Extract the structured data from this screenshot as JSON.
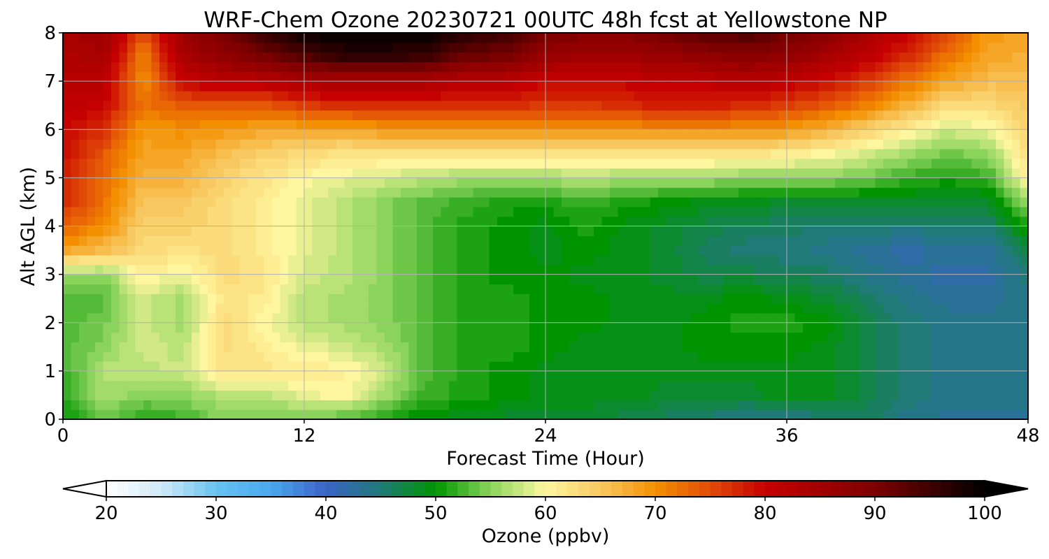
{
  "chart_data": {
    "type": "heatmap",
    "title": "WRF-Chem Ozone  20230721 00UTC 48h fcst at Yellowstone NP",
    "xlabel": "Forecast Time (Hour)",
    "ylabel": "Alt AGL (km)",
    "xlim": [
      0,
      48
    ],
    "ylim": [
      0,
      8
    ],
    "xticks": [
      "0",
      "12",
      "24",
      "36",
      "48"
    ],
    "yticks": [
      "0",
      "1",
      "2",
      "3",
      "4",
      "5",
      "6",
      "7",
      "8"
    ],
    "grid": true,
    "x_hours": [
      0,
      2,
      4,
      6,
      8,
      10,
      12,
      14,
      16,
      18,
      20,
      22,
      24,
      26,
      28,
      30,
      32,
      34,
      36,
      38,
      40,
      42,
      44,
      46,
      48
    ],
    "y_km": [
      0,
      0.5,
      1,
      1.5,
      2,
      2.5,
      3,
      3.5,
      4,
      4.5,
      5,
      5.5,
      6,
      6.5,
      7,
      7.5,
      8
    ],
    "ozone_ppbv": [
      [
        50,
        54,
        51,
        52,
        55,
        54,
        54,
        53,
        51,
        49,
        49,
        48,
        48,
        48,
        47,
        46,
        45,
        44,
        44,
        45,
        46,
        44,
        43,
        43,
        43
      ],
      [
        51,
        56,
        55,
        55,
        57,
        57,
        59,
        60,
        56,
        52,
        51,
        50,
        49,
        49,
        49,
        48,
        48,
        48,
        49,
        49,
        47,
        45,
        44,
        44,
        44
      ],
      [
        52,
        57,
        57,
        58,
        62,
        62,
        61,
        61,
        58,
        53,
        51,
        50,
        49,
        49,
        49,
        49,
        49,
        49,
        49,
        49,
        47,
        45,
        44,
        44,
        44
      ],
      [
        53,
        55,
        58,
        57,
        63,
        61,
        59,
        58,
        56,
        53,
        51,
        51,
        50,
        49,
        49,
        49,
        50,
        50,
        50,
        49,
        47,
        45,
        44,
        44,
        44
      ],
      [
        53,
        54,
        58,
        56,
        63,
        60,
        57,
        56,
        55,
        53,
        51,
        51,
        50,
        50,
        49,
        49,
        50,
        51,
        51,
        50,
        47,
        45,
        44,
        44,
        44
      ],
      [
        53,
        53,
        58,
        56,
        62,
        61,
        57,
        56,
        55,
        53,
        51,
        51,
        50,
        50,
        49,
        49,
        49,
        50,
        49,
        48,
        46,
        44,
        43,
        43,
        44
      ],
      [
        56,
        55,
        61,
        59,
        63,
        62,
        58,
        57,
        55,
        53,
        51,
        50,
        50,
        49,
        49,
        48,
        47,
        47,
        46,
        46,
        44,
        43,
        42,
        42,
        45
      ],
      [
        68,
        66,
        63,
        62,
        63,
        61,
        59,
        57,
        55,
        53,
        51,
        50,
        49,
        50,
        49,
        48,
        46,
        45,
        45,
        44,
        43,
        42,
        43,
        43,
        47
      ],
      [
        74,
        70,
        64,
        64,
        63,
        61,
        59,
        57,
        55,
        53,
        51,
        50,
        49,
        51,
        49,
        48,
        47,
        46,
        46,
        45,
        45,
        45,
        45,
        45,
        51
      ],
      [
        77,
        72,
        65,
        65,
        63,
        61,
        59,
        57,
        55,
        53,
        52,
        51,
        51,
        52,
        51,
        50,
        49,
        49,
        48,
        48,
        48,
        48,
        48,
        48,
        56
      ],
      [
        78,
        73,
        67,
        67,
        64,
        62,
        60,
        59,
        58,
        57,
        56,
        56,
        56,
        57,
        56,
        56,
        56,
        55,
        55,
        55,
        54,
        52,
        51,
        52,
        61
      ],
      [
        79,
        74,
        68,
        68,
        66,
        64,
        63,
        62,
        62,
        62,
        62,
        62,
        62,
        62,
        62,
        62,
        62,
        62,
        61,
        60,
        58,
        56,
        54,
        55,
        63
      ],
      [
        80,
        77,
        69,
        70,
        69,
        68,
        68,
        68,
        69,
        69,
        70,
        70,
        70,
        70,
        70,
        70,
        70,
        70,
        69,
        67,
        64,
        61,
        58,
        59,
        64
      ],
      [
        81,
        80,
        72,
        74,
        74,
        74,
        76,
        77,
        77,
        77,
        77,
        77,
        76,
        76,
        77,
        78,
        78,
        77,
        76,
        74,
        71,
        67,
        63,
        63,
        65
      ],
      [
        82,
        82,
        70,
        80,
        82,
        82,
        84,
        84,
        84,
        84,
        82,
        82,
        80,
        80,
        80,
        81,
        81,
        82,
        81,
        79,
        76,
        72,
        68,
        66,
        66
      ],
      [
        83,
        84,
        71,
        84,
        87,
        90,
        93,
        96,
        96,
        95,
        91,
        90,
        86,
        85,
        85,
        86,
        87,
        88,
        87,
        84,
        81,
        77,
        72,
        68,
        67
      ],
      [
        84,
        86,
        74,
        86,
        90,
        96,
        99,
        100,
        100,
        100,
        97,
        95,
        90,
        89,
        89,
        91,
        93,
        94,
        91,
        88,
        84,
        80,
        75,
        69,
        68
      ]
    ],
    "colorbar": {
      "label": "Ozone  (ppbv)",
      "ticks": [
        "20",
        "30",
        "40",
        "50",
        "60",
        "70",
        "80",
        "90",
        "100"
      ],
      "tick_values": [
        20,
        30,
        40,
        50,
        60,
        70,
        80,
        90,
        100
      ],
      "min": 20,
      "max": 100,
      "extend": "both",
      "stops": [
        {
          "v": 20,
          "c": "#ffffff"
        },
        {
          "v": 25,
          "c": "#cfeaf8"
        },
        {
          "v": 30,
          "c": "#67c3f0"
        },
        {
          "v": 35,
          "c": "#4aa7ee"
        },
        {
          "v": 40,
          "c": "#3b63c6"
        },
        {
          "v": 45,
          "c": "#1f7a78"
        },
        {
          "v": 50,
          "c": "#009500"
        },
        {
          "v": 55,
          "c": "#8bd45c"
        },
        {
          "v": 60,
          "c": "#fff7a0"
        },
        {
          "v": 65,
          "c": "#f8c860"
        },
        {
          "v": 70,
          "c": "#f49000"
        },
        {
          "v": 75,
          "c": "#e14b08"
        },
        {
          "v": 80,
          "c": "#c60000"
        },
        {
          "v": 90,
          "c": "#7d0000"
        },
        {
          "v": 100,
          "c": "#000000"
        }
      ]
    }
  }
}
